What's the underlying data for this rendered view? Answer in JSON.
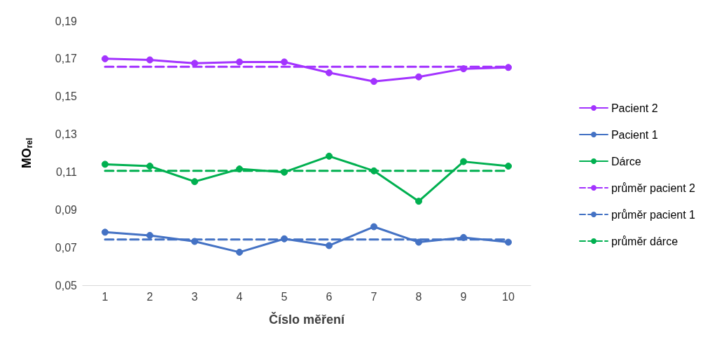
{
  "chart_data": {
    "type": "line",
    "xlabel": "Číslo měření",
    "ylabel": "MO$_{rel}$",
    "categories": [
      "1",
      "2",
      "3",
      "4",
      "5",
      "6",
      "7",
      "8",
      "9",
      "10"
    ],
    "series": [
      {
        "name": "Pacient 2",
        "color": "#a333ff",
        "marker": "circle",
        "values": [
          0.17,
          0.1694,
          0.1676,
          0.1683,
          0.1683,
          0.1626,
          0.158,
          0.1604,
          0.1647,
          0.1654
        ]
      },
      {
        "name": "Pacient 1",
        "color": "#4472c4",
        "marker": "circle",
        "values": [
          0.0781,
          0.0764,
          0.0732,
          0.0675,
          0.0746,
          0.071,
          0.081,
          0.0728,
          0.0753,
          0.0728
        ]
      },
      {
        "name": "Dárce",
        "color": "#00b050",
        "marker": "circle",
        "values": [
          0.1141,
          0.1131,
          0.1049,
          0.1116,
          0.1099,
          0.1184,
          0.1106,
          0.0945,
          0.1155,
          0.1131
        ]
      },
      {
        "name": "průměr pacient 2",
        "color": "#a333ff",
        "marker": "none",
        "line_style": "dashed",
        "values": [
          0.1658,
          0.1658,
          0.1658,
          0.1658,
          0.1658,
          0.1658,
          0.1658,
          0.1658,
          0.1658,
          0.1658
        ]
      },
      {
        "name": "průměr pacient 1",
        "color": "#4472c4",
        "marker": "none",
        "line_style": "dashed",
        "values": [
          0.0742,
          0.0742,
          0.0742,
          0.0742,
          0.0742,
          0.0742,
          0.0742,
          0.0742,
          0.0742,
          0.0742
        ]
      },
      {
        "name": "průměr dárce",
        "color": "#00b050",
        "marker": "none",
        "line_style": "dashed",
        "values": [
          0.1106,
          0.1106,
          0.1106,
          0.1106,
          0.1106,
          0.1106,
          0.1106,
          0.1106,
          0.1106,
          0.1106
        ]
      }
    ],
    "ylim": [
      0.05,
      0.19
    ],
    "yticks": [
      {
        "value": 0.05,
        "label": "0,05"
      },
      {
        "value": 0.07,
        "label": "0,07"
      },
      {
        "value": 0.09,
        "label": "0,09"
      },
      {
        "value": 0.11,
        "label": "0,11"
      },
      {
        "value": 0.13,
        "label": "0,13"
      },
      {
        "value": 0.15,
        "label": "0,15"
      },
      {
        "value": 0.17,
        "label": "0,17"
      },
      {
        "value": 0.19,
        "label": "0,19"
      }
    ],
    "grid": false,
    "legend": "right"
  }
}
